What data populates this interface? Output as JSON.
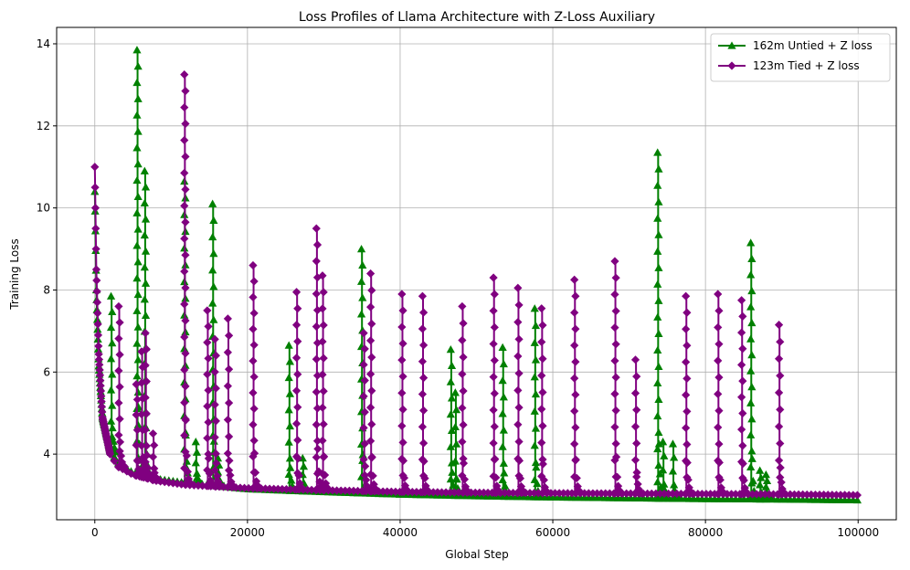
{
  "chart_data": {
    "type": "line",
    "title": "Loss Profiles of Llama Architecture with Z-Loss Auxiliary",
    "xlabel": "Global Step",
    "ylabel": "Training Loss",
    "xlim": [
      -5000,
      105000
    ],
    "ylim": [
      2.4,
      14.4
    ],
    "xticks": [
      0,
      20000,
      40000,
      60000,
      80000,
      100000
    ],
    "yticks": [
      4,
      6,
      8,
      10,
      12,
      14
    ],
    "grid": true,
    "legend_position": "top-right",
    "series": [
      {
        "name": "162m Untied + Z loss",
        "color": "#008000",
        "marker": "triangle",
        "baseline": [
          [
            0,
            10.4
          ],
          [
            200,
            8.0
          ],
          [
            500,
            6.2
          ],
          [
            1000,
            4.9
          ],
          [
            2000,
            4.1
          ],
          [
            3000,
            3.8
          ],
          [
            5000,
            3.55
          ],
          [
            8000,
            3.4
          ],
          [
            12000,
            3.3
          ],
          [
            20000,
            3.15
          ],
          [
            30000,
            3.08
          ],
          [
            40000,
            3.02
          ],
          [
            50000,
            2.98
          ],
          [
            60000,
            2.95
          ],
          [
            70000,
            2.93
          ],
          [
            80000,
            2.91
          ],
          [
            90000,
            2.9
          ],
          [
            100000,
            2.88
          ]
        ],
        "spikes": [
          [
            2200,
            7.85
          ],
          [
            5600,
            13.85
          ],
          [
            6600,
            10.9
          ],
          [
            11800,
            10.65
          ],
          [
            13300,
            4.3
          ],
          [
            15500,
            10.1
          ],
          [
            16200,
            3.9
          ],
          [
            25500,
            6.65
          ],
          [
            27300,
            3.9
          ],
          [
            35000,
            9.0
          ],
          [
            46700,
            6.55
          ],
          [
            47300,
            5.5
          ],
          [
            53500,
            6.6
          ],
          [
            57700,
            7.55
          ],
          [
            73800,
            11.35
          ],
          [
            74500,
            4.3
          ],
          [
            75800,
            4.25
          ],
          [
            86000,
            9.15
          ],
          [
            87200,
            3.6
          ],
          [
            88000,
            3.5
          ]
        ]
      },
      {
        "name": "123m Tied + Z loss",
        "color": "#800080",
        "marker": "diamond",
        "baseline": [
          [
            0,
            11.0
          ],
          [
            200,
            8.5
          ],
          [
            500,
            6.5
          ],
          [
            1000,
            4.9
          ],
          [
            2000,
            4.0
          ],
          [
            3000,
            3.7
          ],
          [
            5000,
            3.5
          ],
          [
            8000,
            3.35
          ],
          [
            12000,
            3.25
          ],
          [
            20000,
            3.17
          ],
          [
            30000,
            3.12
          ],
          [
            40000,
            3.08
          ],
          [
            50000,
            3.06
          ],
          [
            60000,
            3.05
          ],
          [
            70000,
            3.04
          ],
          [
            80000,
            3.03
          ],
          [
            90000,
            3.02
          ],
          [
            100000,
            3.0
          ]
        ],
        "spikes": [
          [
            3200,
            7.6
          ],
          [
            5500,
            5.7
          ],
          [
            6200,
            6.5
          ],
          [
            6700,
            6.95
          ],
          [
            7700,
            4.5
          ],
          [
            11800,
            13.25
          ],
          [
            14800,
            7.5
          ],
          [
            15800,
            6.8
          ],
          [
            17500,
            7.3
          ],
          [
            20800,
            8.6
          ],
          [
            26500,
            7.95
          ],
          [
            29100,
            9.5
          ],
          [
            29900,
            8.35
          ],
          [
            35300,
            6.95
          ],
          [
            36200,
            8.4
          ],
          [
            40300,
            7.9
          ],
          [
            43000,
            7.85
          ],
          [
            48200,
            7.6
          ],
          [
            52300,
            8.3
          ],
          [
            55500,
            8.05
          ],
          [
            58600,
            7.55
          ],
          [
            62900,
            8.25
          ],
          [
            68200,
            8.7
          ],
          [
            70900,
            6.3
          ],
          [
            77500,
            7.85
          ],
          [
            81700,
            7.9
          ],
          [
            84800,
            7.75
          ],
          [
            89700,
            7.15
          ]
        ]
      }
    ]
  }
}
